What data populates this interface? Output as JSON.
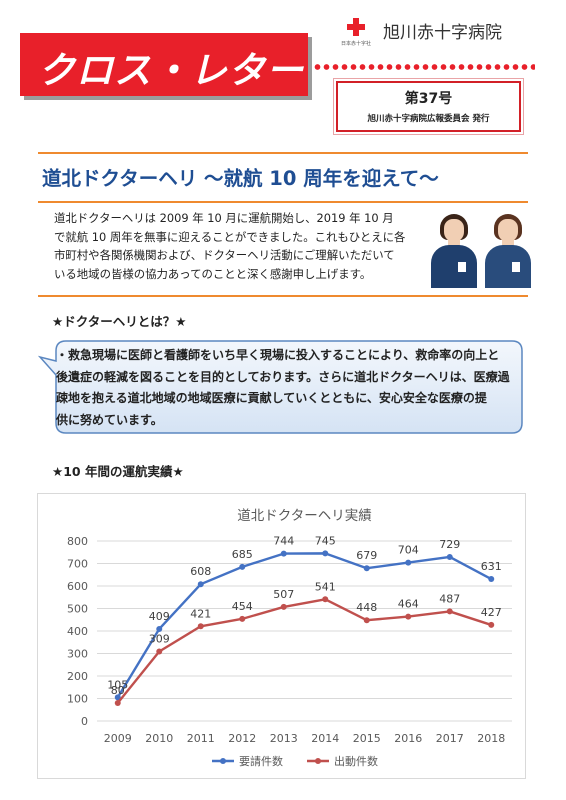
{
  "header": {
    "title": "クロス・レター",
    "hospital_name": "旭川赤十字病院",
    "logo_caption": "日本赤十字社",
    "issue_number": "第37号",
    "publisher": "旭川赤十字病院広報委員会 発行"
  },
  "article": {
    "headline": "道北ドクターヘリ ～就航 10 周年を迎えて～",
    "intro_lines": [
      "道北ドクターヘリは 2009 年 10 月に運航開始し、2019 年 10 月",
      "で就航 10 周年を無事に迎えることができました。これもひとえに各",
      "市町村や各関係機関および、ドクターヘリ活動にご理解いただいて",
      "いる地域の皆様の協力あってのことと深く感謝申し上げます。"
    ],
    "section1_title": "★ドクターヘリとは？★",
    "section1_lines": [
      "・救急現場に医師と看護師をいち早く現場に投入することにより、救命率の向上と",
      "後遺症の軽減を図ることを目的としております。さらに道北ドクターヘリは、医療過",
      "疎地を抱える道北地域の地域医療に貢献していくとともに、安心安全な医療の提",
      "供に努めています。"
    ],
    "section2_title": "★10 年間の運航実績★"
  },
  "colors": {
    "brand_red": "#e8202a",
    "headline_blue": "#1f4e93",
    "rule_orange": "#ef8a2f",
    "series_blue": "#4472c4",
    "series_red": "#c0504d"
  },
  "chart_data": {
    "type": "line",
    "title": "道北ドクターヘリ実績",
    "x": [
      "2009",
      "2010",
      "2011",
      "2012",
      "2013",
      "2014",
      "2015",
      "2016",
      "2017",
      "2018"
    ],
    "series": [
      {
        "name": "要請件数",
        "values": [
          105,
          409,
          608,
          685,
          744,
          745,
          679,
          704,
          729,
          631
        ],
        "color": "#4472c4"
      },
      {
        "name": "出動件数",
        "values": [
          80,
          309,
          421,
          454,
          507,
          541,
          448,
          464,
          487,
          427
        ],
        "color": "#c0504d"
      }
    ],
    "ylim": [
      0,
      800
    ],
    "yticks": [
      "0",
      "100",
      "200",
      "300",
      "400",
      "500",
      "600",
      "700",
      "800"
    ],
    "grid": true,
    "legend": "bottom"
  }
}
